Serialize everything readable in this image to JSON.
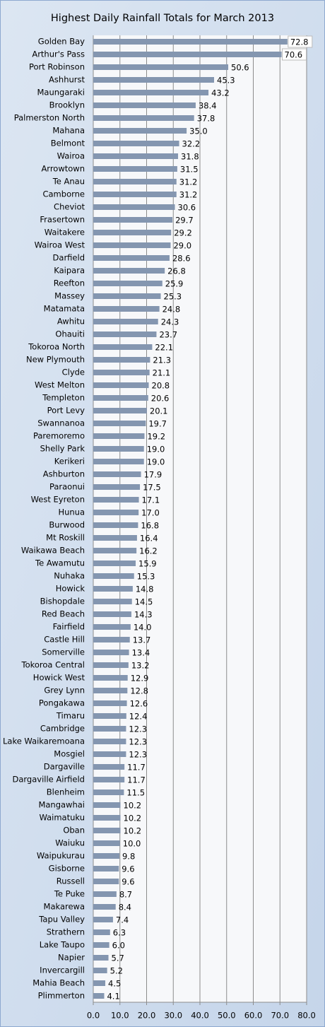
{
  "chart_data": {
    "type": "bar",
    "orientation": "horizontal",
    "title": "Highest Daily Rainfall Totals for March 2013",
    "categories": [
      "Golden Bay",
      "Arthur's Pass",
      "Port Robinson",
      "Ashhurst",
      "Maungaraki",
      "Brooklyn",
      "Palmerston North",
      "Mahana",
      "Belmont",
      "Wairoa",
      "Arrowtown",
      "Te Anau",
      "Camborne",
      "Cheviot",
      "Frasertown",
      "Waitakere",
      "Wairoa West",
      "Darfield",
      "Kaipara",
      "Reefton",
      "Massey",
      "Matamata",
      "Awhitu",
      "Ohauiti",
      "Tokoroa North",
      "New Plymouth",
      "Clyde",
      "West Melton",
      "Templeton",
      "Port Levy",
      "Swannanoa",
      "Paremoremo",
      "Shelly Park",
      "Kerikeri",
      "Ashburton",
      "Paraonui",
      "West Eyreton",
      "Hunua",
      "Burwood",
      "Mt Roskill",
      "Waikawa Beach",
      "Te Awamutu",
      "Nuhaka",
      "Howick",
      "Bishopdale",
      "Red Beach",
      "Fairfield",
      "Castle Hill",
      "Somerville",
      "Tokoroa Central",
      "Howick West",
      "Grey Lynn",
      "Pongakawa",
      "Timaru",
      "Cambridge",
      "Lake Waikaremoana",
      "Mosgiel",
      "Dargaville",
      "Dargaville Airfield",
      "Blenheim",
      "Mangawhai",
      "Waimatuku",
      "Oban",
      "Waiuku",
      "Waipukurau",
      "Gisborne",
      "Russell",
      "Te Puke",
      "Makarewa",
      "Tapu Valley",
      "Strathern",
      "Lake Taupo",
      "Napier",
      "Invercargill",
      "Mahia Beach",
      "Plimmerton"
    ],
    "values": [
      72.8,
      70.6,
      50.6,
      45.3,
      43.2,
      38.4,
      37.8,
      35.0,
      32.2,
      31.8,
      31.5,
      31.2,
      31.2,
      30.6,
      29.7,
      29.2,
      29.0,
      28.6,
      26.8,
      25.9,
      25.3,
      24.8,
      24.3,
      23.7,
      22.1,
      21.3,
      21.1,
      20.8,
      20.6,
      20.1,
      19.7,
      19.2,
      19.0,
      19.0,
      17.9,
      17.5,
      17.1,
      17.0,
      16.8,
      16.4,
      16.2,
      15.9,
      15.3,
      14.8,
      14.5,
      14.3,
      14.0,
      13.7,
      13.4,
      13.2,
      12.9,
      12.8,
      12.6,
      12.4,
      12.3,
      12.3,
      12.3,
      11.7,
      11.7,
      11.5,
      10.2,
      10.2,
      10.2,
      10.0,
      9.8,
      9.6,
      9.6,
      8.7,
      8.4,
      7.4,
      6.3,
      6.0,
      5.7,
      5.2,
      4.5,
      4.1
    ],
    "value_labels": [
      "72.8",
      "70.6",
      "50.6",
      "45.3",
      "43.2",
      "38.4",
      "37.8",
      "35.0",
      "32.2",
      "31.8",
      "31.5",
      "31.2",
      "31.2",
      "30.6",
      "29.7",
      "29.2",
      "29.0",
      "28.6",
      "26.8",
      "25.9",
      "25.3",
      "24.8",
      "24.3",
      "23.7",
      "22.1",
      "21.3",
      "21.1",
      "20.8",
      "20.6",
      "20.1",
      "19.7",
      "19.2",
      "19.0",
      "19.0",
      "17.9",
      "17.5",
      "17.1",
      "17.0",
      "16.8",
      "16.4",
      "16.2",
      "15.9",
      "15.3",
      "14.8",
      "14.5",
      "14.3",
      "14.0",
      "13.7",
      "13.4",
      "13.2",
      "12.9",
      "12.8",
      "12.6",
      "12.4",
      "12.3",
      "12.3",
      "12.3",
      "11.7",
      "11.7",
      "11.5",
      "10.2",
      "10.2",
      "10.2",
      "10.0",
      "9.8",
      "9.6",
      "9.6",
      "8.7",
      "8.4",
      "7.4",
      "6.3",
      "6.0",
      "5.7",
      "5.2",
      "4.5",
      "4.1"
    ],
    "color": "#8496b0",
    "xlim": [
      0,
      80
    ],
    "xticks": [
      {
        "value": 0,
        "label": "0.0"
      },
      {
        "value": 10,
        "label": "10.0"
      },
      {
        "value": 20,
        "label": "20.0"
      },
      {
        "value": 30,
        "label": "30.0"
      },
      {
        "value": 40,
        "label": "40.0"
      },
      {
        "value": 50,
        "label": "50.0"
      },
      {
        "value": 60,
        "label": "60.0"
      },
      {
        "value": 70,
        "label": "70.0"
      },
      {
        "value": 80,
        "label": "80.0"
      }
    ],
    "grid": true
  }
}
